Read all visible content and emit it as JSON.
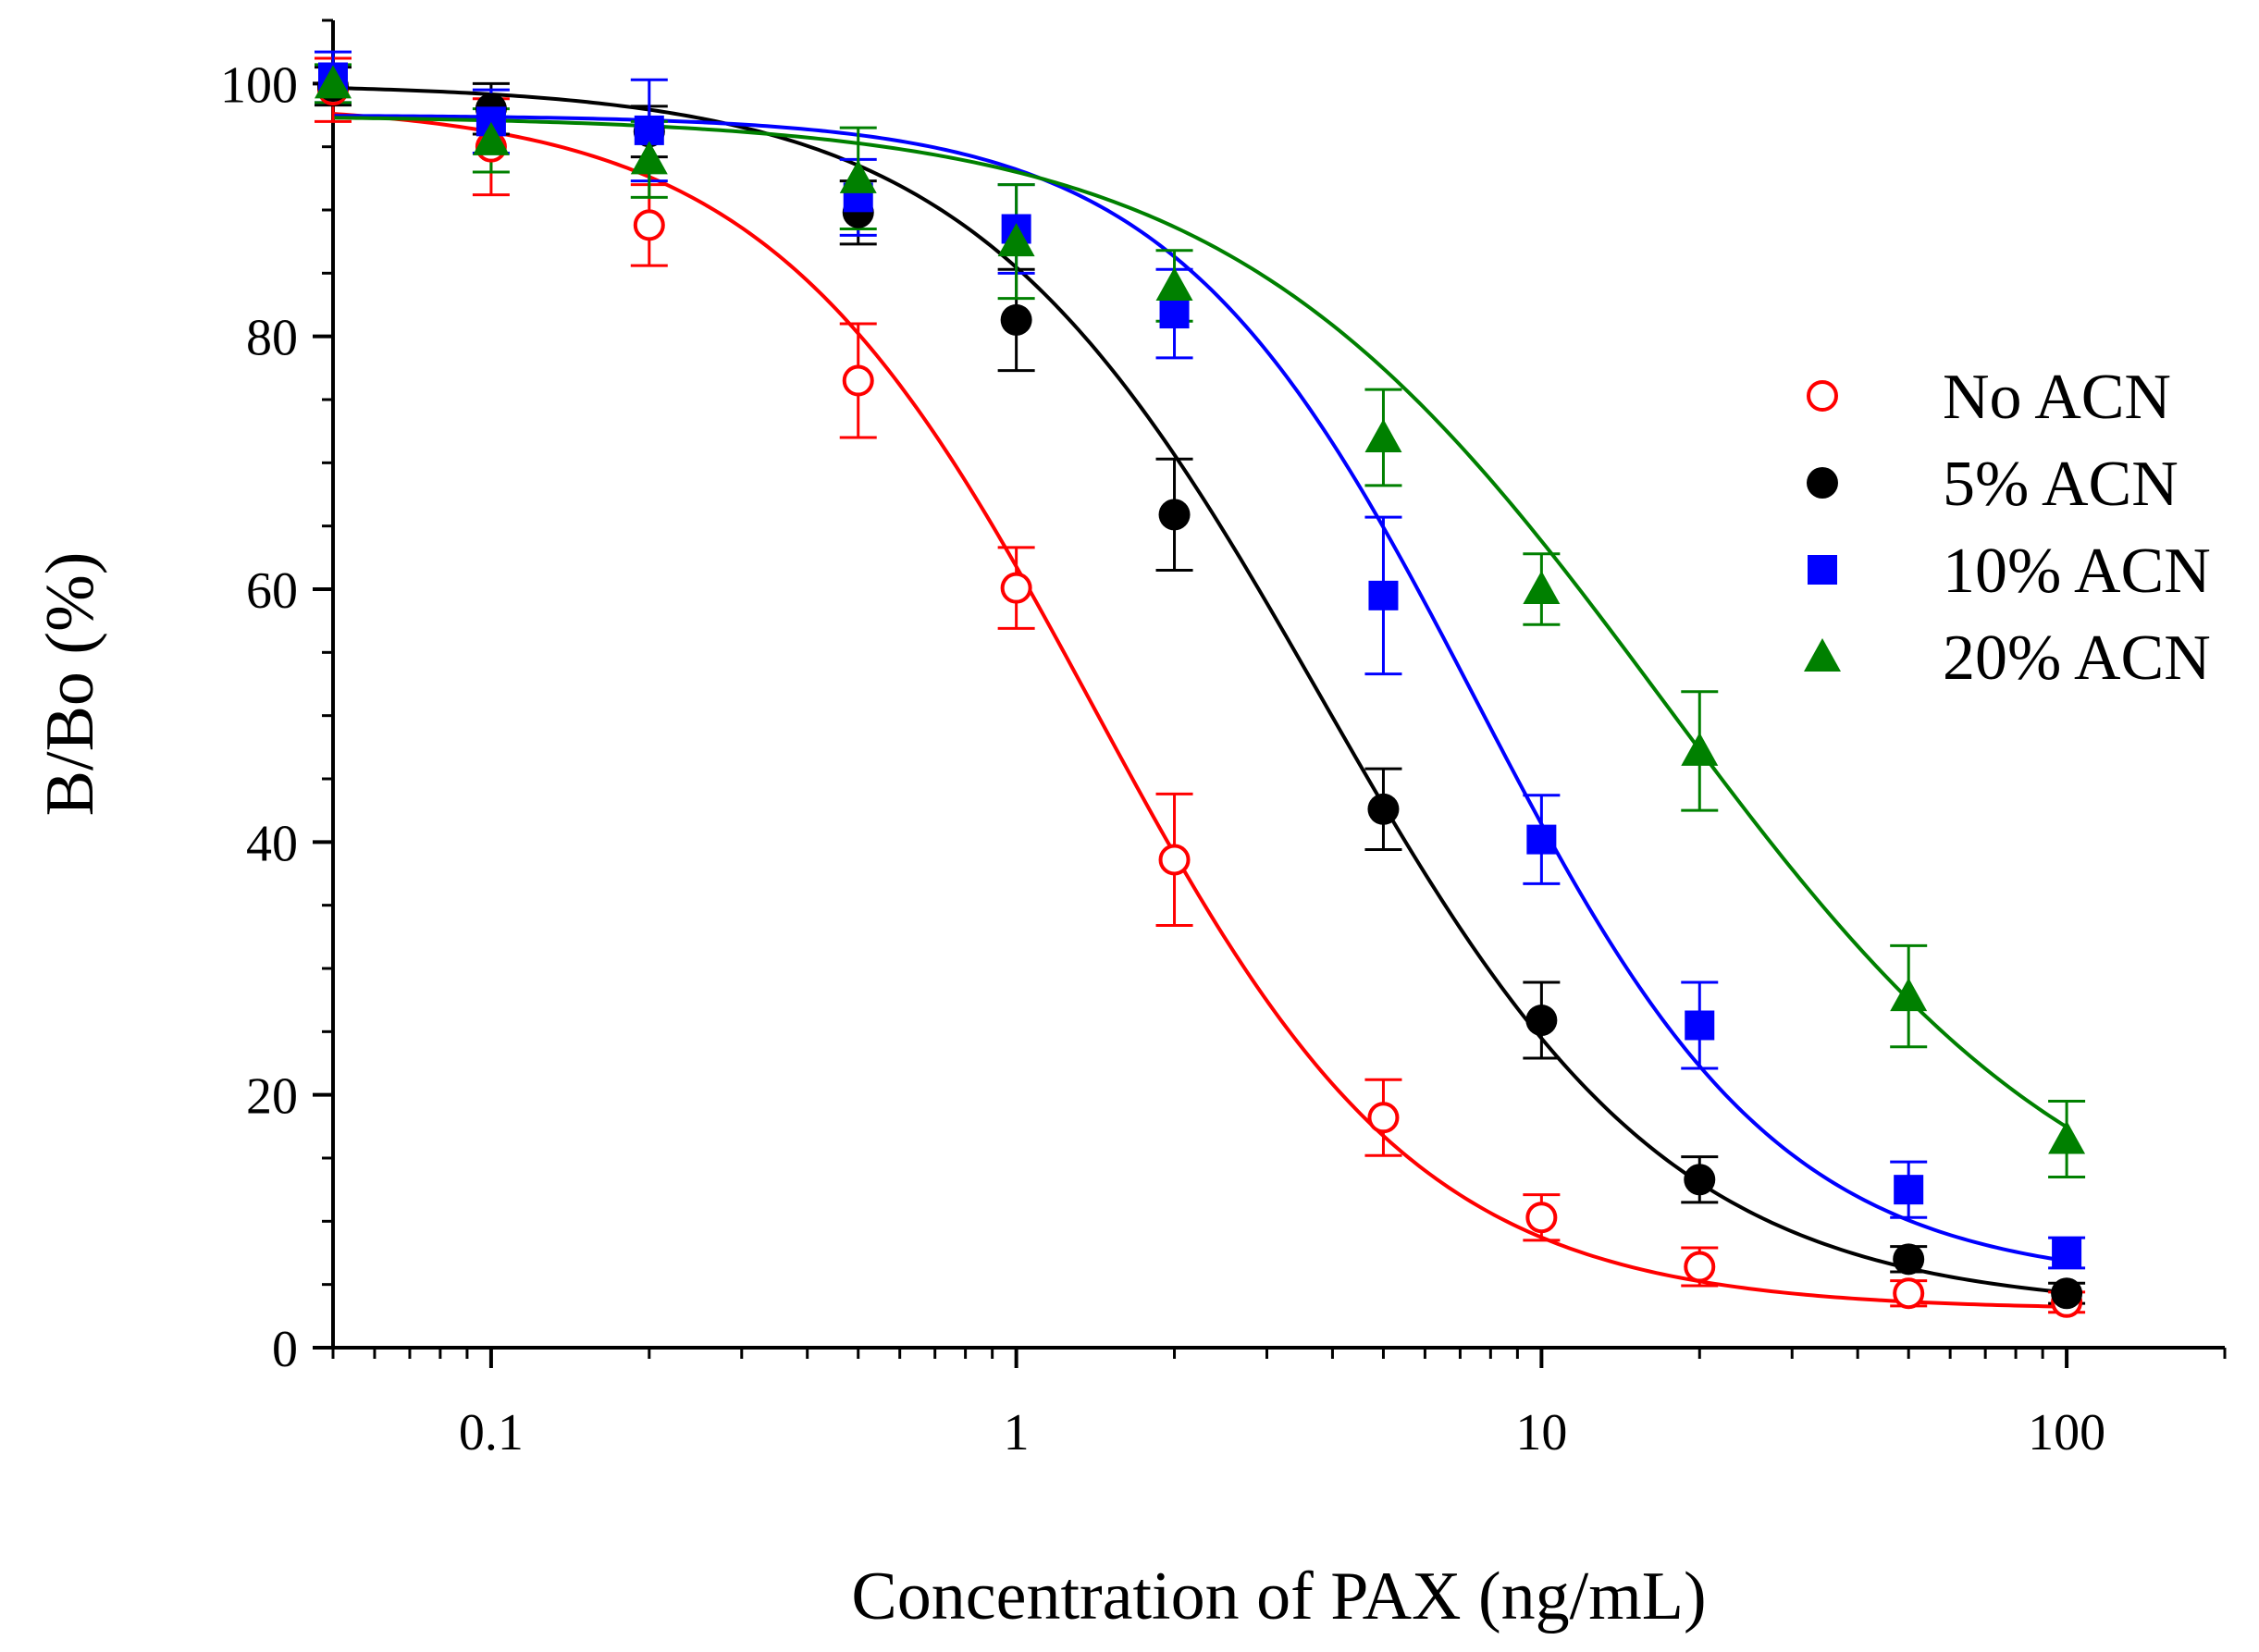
{
  "chart_data": {
    "type": "scatter",
    "title": "",
    "xlabel": "Concentration of PAX (ng/mL)",
    "ylabel": "B/Bo (%)",
    "xscale": "log",
    "xlim": [
      0.05,
      200
    ],
    "ylim": [
      0,
      105
    ],
    "xticks": [
      0.1,
      1,
      10,
      100
    ],
    "xtick_labels": [
      "0.1",
      "1",
      "10",
      "100"
    ],
    "yticks": [
      0,
      20,
      40,
      60,
      80,
      100
    ],
    "ytick_labels": [
      "0",
      "20",
      "40",
      "60",
      "80",
      "100"
    ],
    "grid": false,
    "legend_position": "right",
    "series": [
      {
        "name": "No ACN",
        "color": "#ff0000",
        "marker": "open-circle",
        "x": [
          0.05,
          0.1,
          0.2,
          0.5,
          1,
          2,
          5,
          10,
          20,
          50,
          100
        ],
        "y": [
          99.5,
          95.0,
          88.8,
          76.5,
          60.1,
          38.6,
          18.2,
          10.3,
          6.4,
          4.3,
          3.6
        ],
        "err": [
          2.5,
          3.8,
          3.2,
          4.5,
          3.2,
          5.2,
          3.0,
          1.8,
          1.5,
          1.0,
          0.8
        ],
        "fit": {
          "top": 98.5,
          "bottom": 3.0,
          "ic50": 1.4,
          "hill": 1.4
        }
      },
      {
        "name": "5% ACN",
        "color": "#000000",
        "marker": "filled-circle",
        "x": [
          0.05,
          0.1,
          0.2,
          0.5,
          1,
          2,
          5,
          10,
          20,
          50,
          100
        ],
        "y": [
          99.8,
          98.0,
          96.2,
          89.8,
          81.3,
          65.9,
          42.6,
          25.9,
          13.3,
          7.0,
          4.3
        ],
        "err": [
          1.5,
          2.0,
          2.0,
          2.5,
          4.0,
          4.4,
          3.2,
          3.0,
          1.8,
          1.0,
          0.8
        ],
        "fit": {
          "top": 100.0,
          "bottom": 3.0,
          "ic50": 3.8,
          "hill": 1.3
        }
      },
      {
        "name": "10% ACN",
        "color": "#0000ff",
        "marker": "filled-square",
        "x": [
          0.05,
          0.1,
          0.2,
          0.5,
          1,
          2,
          5,
          10,
          20,
          50,
          100
        ],
        "y": [
          100.5,
          97.0,
          96.3,
          91.0,
          88.5,
          81.8,
          59.5,
          40.2,
          25.5,
          12.5,
          7.5
        ],
        "err": [
          2.0,
          2.5,
          4.0,
          3.0,
          3.5,
          3.5,
          6.2,
          3.5,
          3.4,
          2.2,
          1.2
        ],
        "fit": {
          "top": 97.5,
          "bottom": 5.0,
          "ic50": 7.5,
          "hill": 1.5
        }
      },
      {
        "name": "20% ACN",
        "color": "#008000",
        "marker": "filled-triangle",
        "x": [
          0.05,
          0.1,
          0.2,
          0.5,
          1,
          2,
          5,
          10,
          20,
          50,
          100
        ],
        "y": [
          100.0,
          95.5,
          94.0,
          92.5,
          87.5,
          84.0,
          72.0,
          60.0,
          47.2,
          27.8,
          16.5
        ],
        "err": [
          1.5,
          2.5,
          3.0,
          4.0,
          4.5,
          2.8,
          3.8,
          2.8,
          4.7,
          4.0,
          3.0
        ],
        "fit": {
          "top": 97.5,
          "bottom": 5.0,
          "ic50": 17.0,
          "hill": 1.05
        }
      }
    ]
  }
}
